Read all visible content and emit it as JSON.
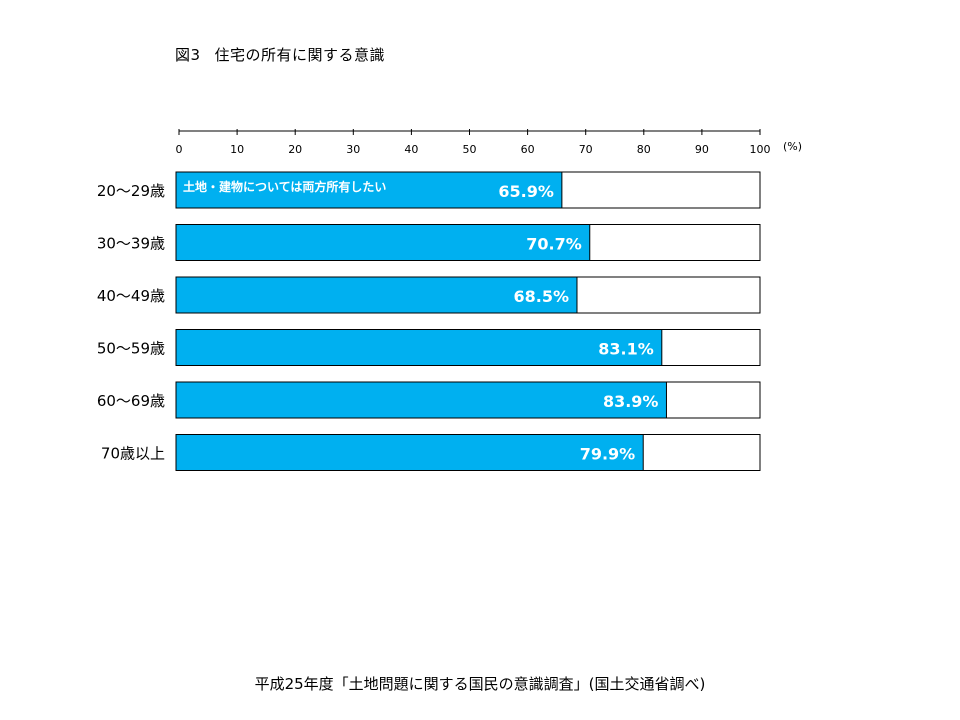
{
  "title": {
    "figure_number": "図3",
    "text": "住宅の所有に関する意識"
  },
  "source": "平成25年度「土地問題に関する国民の意識調査」(国土交通省調べ)",
  "colors": {
    "bar": "#00b0f0",
    "bar_outline": "#000000",
    "label_text": "#ffffff"
  },
  "chart_data": {
    "type": "bar",
    "orientation": "horizontal",
    "stacked_to": 100,
    "categories": [
      "20～29歳",
      "30～39歳",
      "40～49歳",
      "50～59歳",
      "60～69歳",
      "70歳以上"
    ],
    "series": [
      {
        "name": "土地・建物については両方所有したい",
        "values": [
          65.9,
          70.7,
          68.5,
          83.1,
          83.9,
          79.9
        ]
      }
    ],
    "data_labels": [
      "65.9%",
      "70.7%",
      "68.5%",
      "83.1%",
      "83.9%",
      "79.9%"
    ],
    "xlim": [
      0,
      100
    ],
    "x_ticks": [
      "0",
      "10",
      "20",
      "30",
      "40",
      "50",
      "60",
      "70",
      "80",
      "90",
      "100"
    ],
    "x_unit": "(%)",
    "grid": false
  }
}
